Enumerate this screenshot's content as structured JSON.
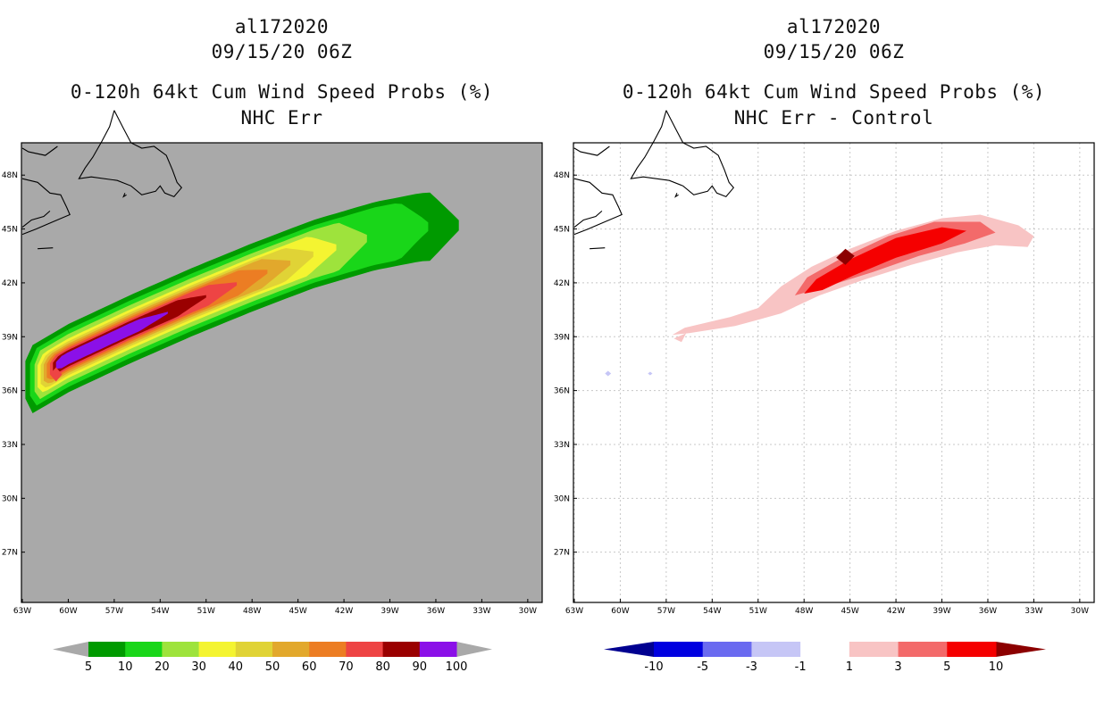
{
  "colors": {
    "map_bg": "#a9a9a9",
    "grid": "#c8c8c8",
    "coast": "#000000"
  },
  "left_panel": {
    "title_line1": "al172020",
    "title_line2": "09/15/20 06Z",
    "title_line3": "0-120h 64kt Cum Wind Speed Probs (%)",
    "title_line4": "NHC Err",
    "lon_labels": [
      "63W",
      "60W",
      "57W",
      "54W",
      "51W",
      "48W",
      "45W",
      "42W",
      "39W",
      "36W",
      "33W",
      "30W"
    ],
    "lat_labels": [
      "48N",
      "45N",
      "42N",
      "39N",
      "36N",
      "33N",
      "30N",
      "27N"
    ],
    "colorbar": {
      "colors": [
        "#009a00",
        "#19d619",
        "#9ee33c",
        "#f4f431",
        "#e0d336",
        "#e2a82c",
        "#ec7d23",
        "#ee4444",
        "#9a0000",
        "#8b10e8"
      ],
      "labels": [
        "5",
        "10",
        "20",
        "30",
        "40",
        "50",
        "60",
        "70",
        "80",
        "90",
        "100"
      ],
      "left_ext_color": "#a9a9a9",
      "right_ext_color": "#a9a9a9"
    },
    "swath_levels": [
      {
        "value": 5,
        "color": "#009a00",
        "halfwidth": 1.9
      },
      {
        "value": 10,
        "color": "#19d619",
        "halfwidth": 1.6
      },
      {
        "value": 20,
        "color": "#9ee33c",
        "halfwidth": 1.35
      },
      {
        "value": 30,
        "color": "#f4f431",
        "halfwidth": 1.1
      },
      {
        "value": 40,
        "color": "#e0d336",
        "halfwidth": 0.95
      },
      {
        "value": 50,
        "color": "#e2a82c",
        "halfwidth": 0.82
      },
      {
        "value": 60,
        "color": "#ec7d23",
        "halfwidth": 0.7
      },
      {
        "value": 70,
        "color": "#ee4444",
        "halfwidth": 0.58
      },
      {
        "value": 80,
        "color": "#9a0000",
        "halfwidth": 0.46
      },
      {
        "value": 90,
        "color": "#8b10e8",
        "halfwidth": 0.34
      }
    ],
    "swath_extent_lon": [
      {
        "value": 5,
        "lon_min": -62.8,
        "lon_max": -34.5
      },
      {
        "value": 10,
        "lon_min": -62.5,
        "lon_max": -36.5
      },
      {
        "value": 20,
        "lon_min": -62.2,
        "lon_max": -40.5
      },
      {
        "value": 30,
        "lon_min": -62.0,
        "lon_max": -42.5
      },
      {
        "value": 40,
        "lon_min": -61.8,
        "lon_max": -44.0
      },
      {
        "value": 50,
        "lon_min": -61.6,
        "lon_max": -45.5
      },
      {
        "value": 60,
        "lon_min": -61.4,
        "lon_max": -47.0
      },
      {
        "value": 70,
        "lon_min": -61.2,
        "lon_max": -49.0
      },
      {
        "value": 80,
        "lon_min": -61.0,
        "lon_max": -51.0
      },
      {
        "value": 90,
        "lon_min": -60.8,
        "lon_max": -53.5
      }
    ]
  },
  "right_panel": {
    "title_line1": "al172020",
    "title_line2": "09/15/20 06Z",
    "title_line3": "0-120h 64kt Cum Wind Speed Probs (%)",
    "title_line4": "NHC Err - Control",
    "lon_labels": [
      "63W",
      "60W",
      "57W",
      "54W",
      "51W",
      "48W",
      "45W",
      "42W",
      "39W",
      "36W",
      "33W",
      "30W"
    ],
    "lat_labels": [
      "48N",
      "45N",
      "42N",
      "39N",
      "36N",
      "33N",
      "30N",
      "27N"
    ],
    "colorbar": {
      "colors": [
        "#0000e0",
        "#6a6af0",
        "#c6c6f6",
        "#ffffff",
        "#f8c4c4",
        "#f36a6a",
        "#f50000"
      ],
      "labels": [
        "-10",
        "-5",
        "-3",
        "-1",
        "1",
        "3",
        "5",
        "10"
      ],
      "left_ext_color": "#000090",
      "right_ext_color": "#8c0000"
    },
    "diff_levels": [
      {
        "value": 1,
        "color": "#f8c4c4"
      },
      {
        "value": 3,
        "color": "#f36a6a"
      },
      {
        "value": 5,
        "color": "#f50000"
      },
      {
        "value": 10,
        "color": "#8c0000"
      },
      {
        "value": -1,
        "color": "#c6c6f6"
      }
    ]
  }
}
